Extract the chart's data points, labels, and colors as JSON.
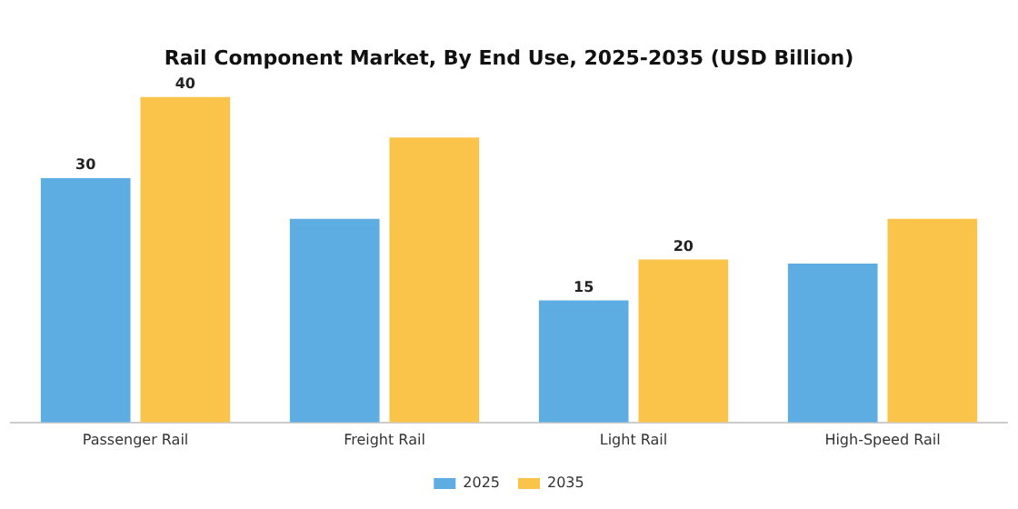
{
  "chart_data": {
    "type": "bar",
    "title": "Rail Component Market, By End Use, 2025-2035 (USD Billion)",
    "categories": [
      "Passenger Rail",
      "Freight Rail",
      "Light Rail",
      "High-Speed Rail"
    ],
    "series": [
      {
        "name": "2025",
        "color": "#5dade2",
        "values": [
          30,
          25,
          15,
          19.5
        ],
        "value_labels": [
          "30",
          null,
          "15",
          null
        ]
      },
      {
        "name": "2035",
        "color": "#f9c449",
        "values": [
          40,
          35,
          20,
          25
        ],
        "value_labels": [
          "40",
          null,
          "20",
          null
        ]
      }
    ],
    "grid": false,
    "legend": "bottom",
    "tick_labels": "x"
  }
}
